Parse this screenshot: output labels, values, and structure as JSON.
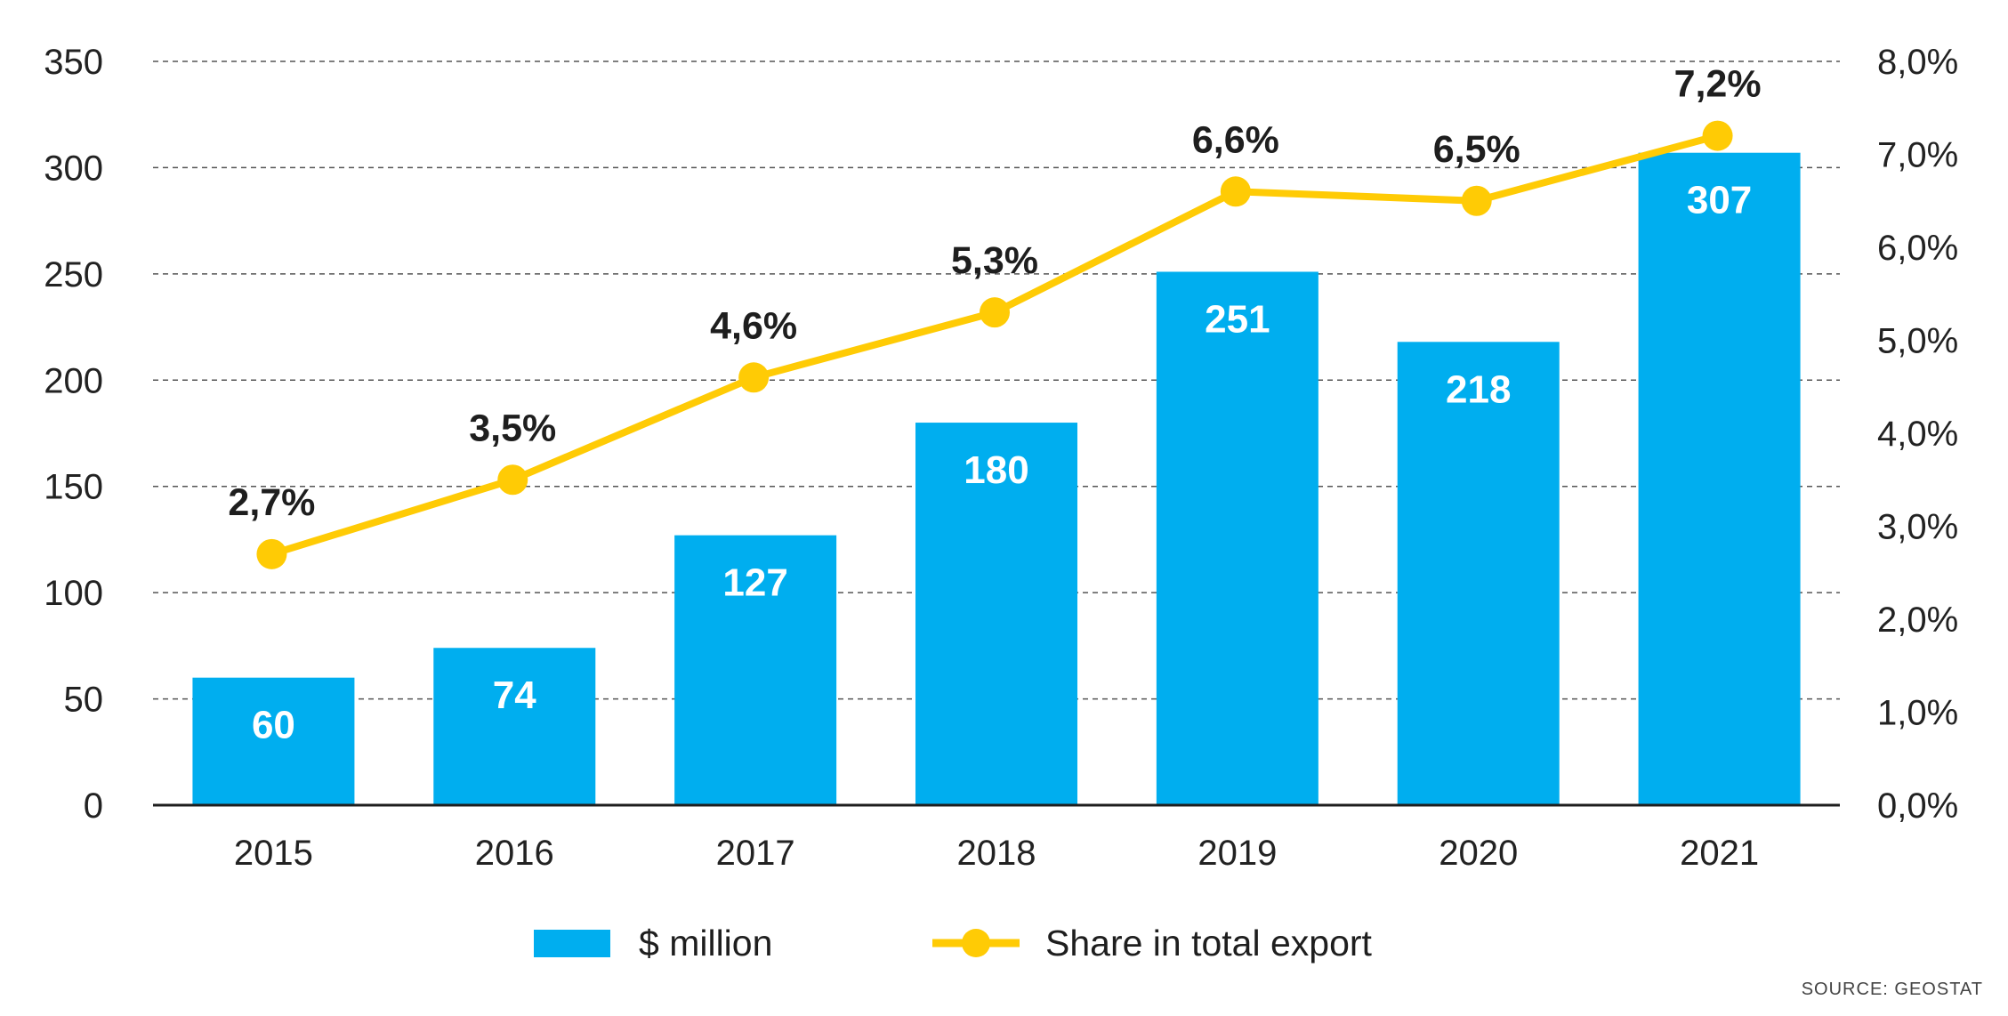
{
  "chart_data": {
    "type": "bar",
    "categories": [
      "2015",
      "2016",
      "2017",
      "2018",
      "2019",
      "2020",
      "2021"
    ],
    "series": [
      {
        "name": "$ million",
        "type": "bar",
        "axis": "left",
        "values": [
          60,
          74,
          127,
          180,
          251,
          218,
          307
        ],
        "labels": [
          "60",
          "74",
          "127",
          "180",
          "251",
          "218",
          "307"
        ]
      },
      {
        "name": "Share in total export",
        "type": "line",
        "axis": "right",
        "values": [
          2.7,
          3.5,
          4.6,
          5.3,
          6.6,
          6.5,
          7.2
        ],
        "labels": [
          "2,7%",
          "3,5%",
          "4,6%",
          "5,3%",
          "6,6%",
          "6,5%",
          "7,2%"
        ]
      }
    ],
    "y_left": {
      "ylim": [
        0,
        350
      ],
      "ticks": [
        "0",
        "50",
        "100",
        "150",
        "200",
        "250",
        "300",
        "350"
      ]
    },
    "y_right": {
      "ylim": [
        0,
        8
      ],
      "ticks": [
        "0,0%",
        "1,0%",
        "2,0%",
        "3,0%",
        "4,0%",
        "5,0%",
        "6,0%",
        "7,0%",
        "8,0%"
      ]
    },
    "grid": true,
    "legend_position": "bottom",
    "source": "SOURCE: GEOSTAT",
    "colors": {
      "bar": "#00AEEF",
      "line": "#FFCB05",
      "text": "#1E1E1E",
      "grid": "#555555"
    }
  }
}
